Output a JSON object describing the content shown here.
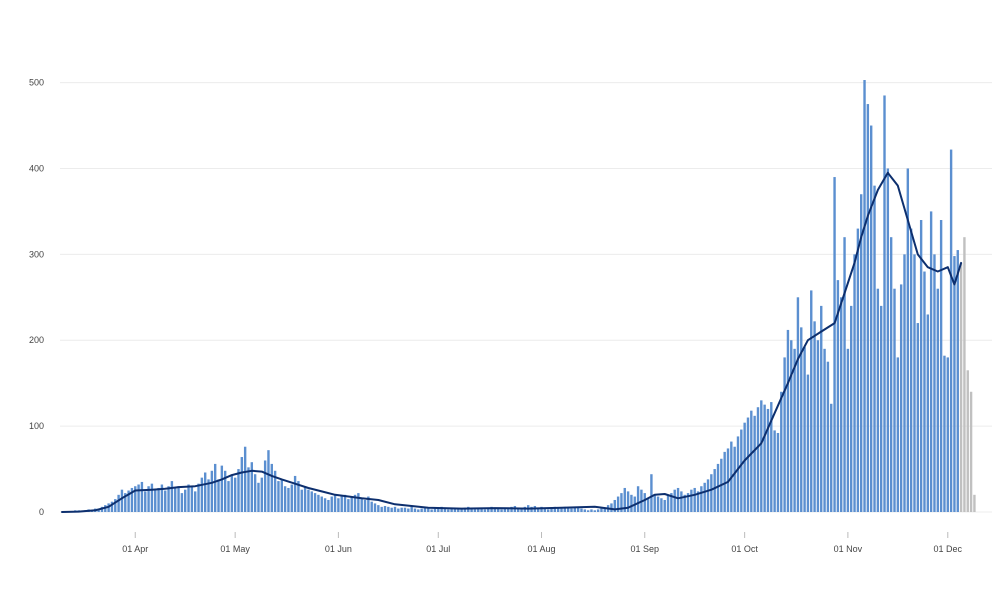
{
  "chart_data": {
    "type": "bar",
    "title": "",
    "xlabel": "",
    "ylabel": "",
    "ylim": [
      0,
      510
    ],
    "y_ticks": [
      0,
      100,
      200,
      300,
      400,
      500
    ],
    "x_ticks": [
      {
        "label": "01 Apr",
        "day": 22
      },
      {
        "label": "01 May",
        "day": 52
      },
      {
        "label": "01 Jun",
        "day": 83
      },
      {
        "label": "01 Jul",
        "day": 113
      },
      {
        "label": "01 Aug",
        "day": 144
      },
      {
        "label": "01 Sep",
        "day": 175
      },
      {
        "label": "01 Oct",
        "day": 205
      },
      {
        "label": "01 Nov",
        "day": 236
      },
      {
        "label": "01 Dec",
        "day": 266
      }
    ],
    "start_date": "2020-03-10",
    "grid": true,
    "colors": {
      "bars": "#5b8fd0",
      "incomplete_bars": "#c0c0c0",
      "moving_average": "#0d2f6e"
    },
    "series": [
      {
        "kind": "bar",
        "values": [
          0,
          0,
          1,
          1,
          2,
          2,
          1,
          2,
          3,
          2,
          4,
          4,
          6,
          8,
          10,
          12,
          15,
          20,
          26,
          22,
          25,
          28,
          30,
          32,
          35,
          24,
          30,
          33,
          26,
          28,
          32,
          25,
          30,
          36,
          28,
          30,
          22,
          26,
          32,
          30,
          24,
          33,
          40,
          46,
          38,
          48,
          56,
          38,
          54,
          48,
          36,
          42,
          40,
          50,
          64,
          76,
          52,
          58,
          44,
          34,
          40,
          60,
          72,
          56,
          48,
          36,
          38,
          30,
          28,
          32,
          42,
          36,
          26,
          30,
          26,
          24,
          22,
          20,
          18,
          16,
          14,
          18,
          20,
          16,
          18,
          20,
          15,
          17,
          20,
          22,
          16,
          14,
          18,
          12,
          10,
          8,
          6,
          7,
          6,
          5,
          6,
          4,
          5,
          5,
          4,
          6,
          4,
          3,
          4,
          5,
          4,
          3,
          4,
          5,
          6,
          4,
          3,
          5,
          4,
          3,
          4,
          5,
          6,
          4,
          3,
          5,
          4,
          3,
          5,
          6,
          4,
          5,
          3,
          4,
          5,
          6,
          7,
          5,
          4,
          6,
          8,
          6,
          7,
          5,
          6,
          4,
          3,
          5,
          6,
          5,
          4,
          6,
          5,
          4,
          6,
          5,
          4,
          3,
          2,
          3,
          2,
          3,
          4,
          5,
          8,
          10,
          14,
          18,
          22,
          28,
          24,
          20,
          18,
          30,
          26,
          22,
          16,
          44,
          20,
          18,
          16,
          14,
          20,
          22,
          26,
          28,
          24,
          20,
          22,
          26,
          28,
          24,
          30,
          34,
          38,
          44,
          50,
          56,
          62,
          70,
          74,
          82,
          76,
          88,
          96,
          104,
          110,
          118,
          112,
          122,
          130,
          125,
          120,
          128,
          95,
          92,
          140,
          180,
          212,
          200,
          190,
          250,
          215,
          192,
          160,
          258,
          222,
          200,
          240,
          190,
          175,
          126,
          390,
          270,
          250,
          320,
          190,
          240,
          300,
          330,
          370,
          503,
          475,
          450,
          380,
          260,
          240,
          485,
          400,
          320,
          260,
          180,
          265,
          300,
          400,
          330,
          300,
          220,
          340,
          280,
          230,
          350,
          300,
          260,
          340,
          182,
          180,
          422,
          298,
          305
        ],
        "name": ""
      },
      {
        "kind": "bar_incomplete",
        "values": [
          290,
          320,
          165,
          140,
          20
        ],
        "name": ""
      },
      {
        "kind": "line",
        "name": "",
        "x": [
          0,
          5,
          10,
          14,
          18,
          22,
          27,
          31,
          35,
          40,
          45,
          48,
          51,
          54,
          57,
          60,
          63,
          66,
          70,
          74,
          78,
          82,
          86,
          90,
          95,
          100,
          110,
          120,
          130,
          140,
          150,
          160,
          166,
          170,
          175,
          178,
          181,
          185,
          190,
          195,
          200,
          205,
          210,
          214,
          218,
          221,
          224,
          228,
          230,
          232,
          235,
          238,
          240,
          242,
          245,
          248,
          251,
          254,
          257,
          260,
          263,
          266,
          268,
          270
        ],
        "y": [
          0,
          0.5,
          2,
          6,
          16,
          25,
          26,
          27,
          29,
          30,
          34,
          38,
          43,
          46,
          48,
          47,
          42,
          38,
          33,
          28,
          24,
          20,
          18,
          16,
          14,
          9,
          5,
          4,
          4.5,
          4,
          5,
          6,
          3,
          5,
          14,
          20,
          21,
          16,
          20,
          26,
          35,
          60,
          80,
          115,
          150,
          178,
          200,
          210,
          215,
          220,
          255,
          290,
          320,
          345,
          375,
          395,
          380,
          340,
          300,
          285,
          280,
          285,
          265,
          290
        ]
      }
    ]
  }
}
